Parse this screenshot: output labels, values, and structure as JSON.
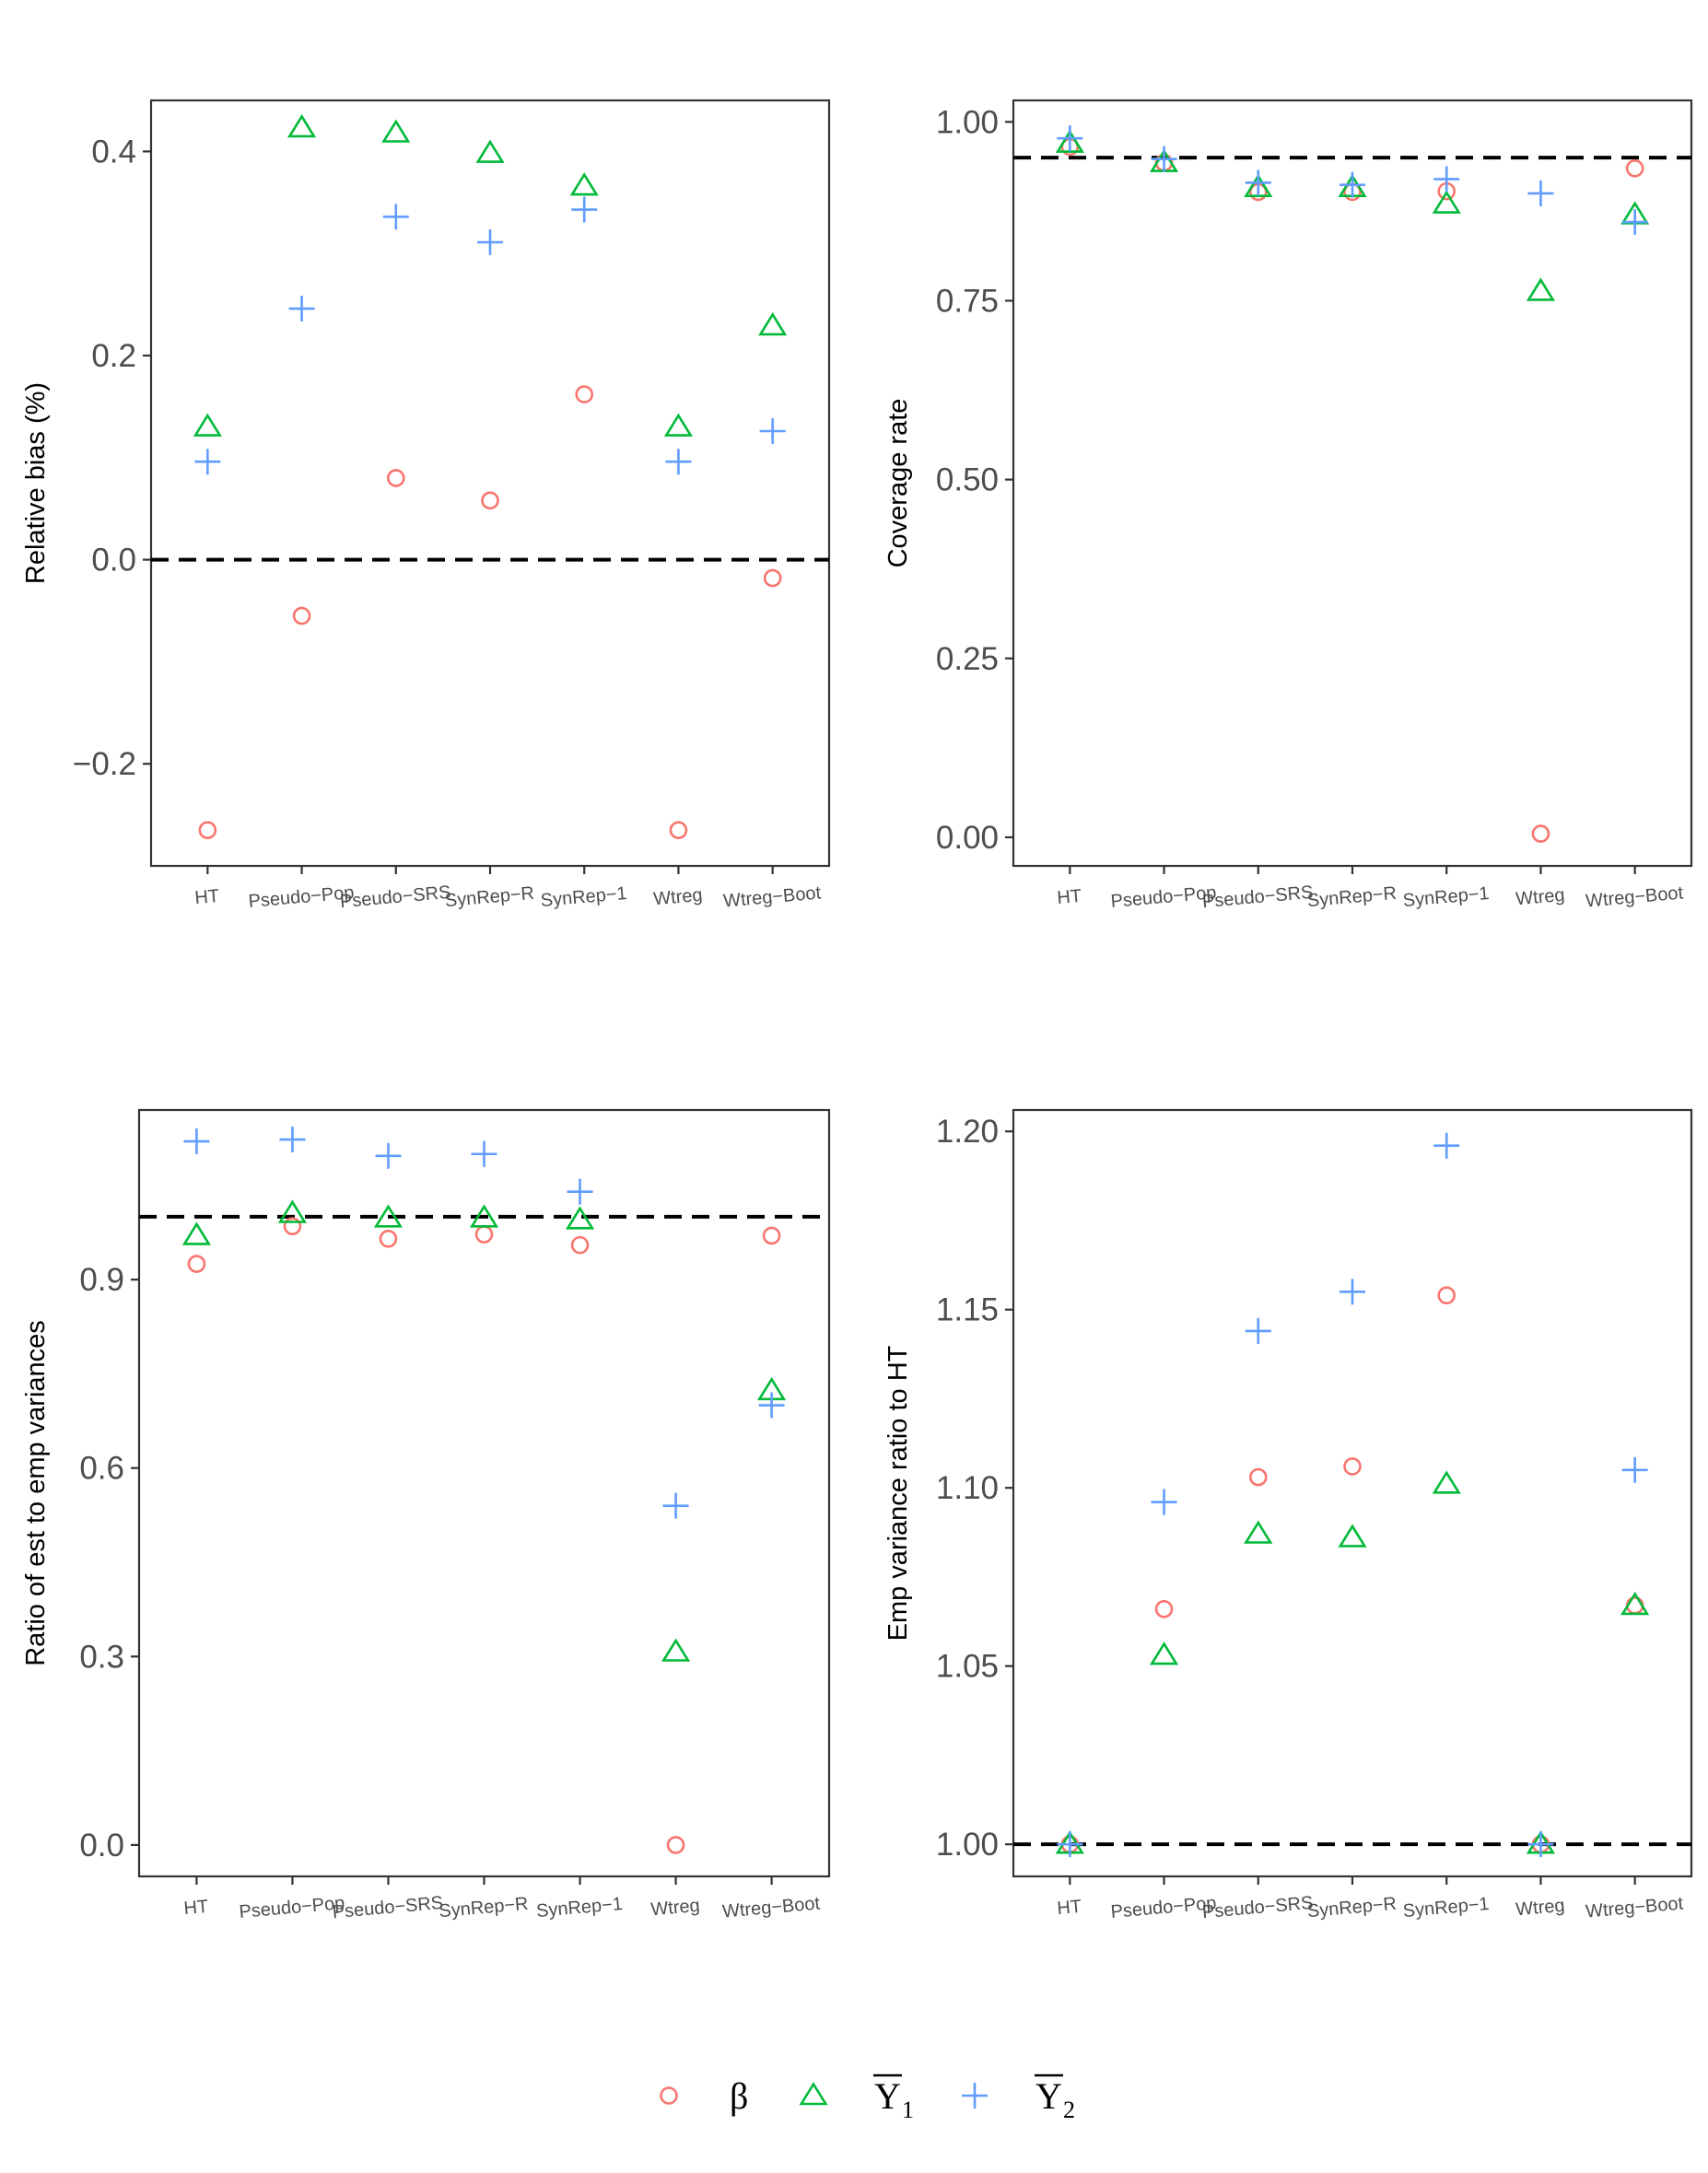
{
  "chart_data": [
    {
      "type": "scatter",
      "ylabel": "Relative bias (%)",
      "categories": [
        "HT",
        "Pseudo−Pop",
        "Pseudo−SRS",
        "SynRep−R",
        "SynRep−1",
        "Wtreg",
        "Wtreg−Boot"
      ],
      "ylim": [
        -0.3,
        0.45
      ],
      "yticks": [
        -0.2,
        0.0,
        0.2,
        0.4
      ],
      "ytick_labels": [
        "−0.2",
        "0.0",
        "0.2",
        "0.4"
      ],
      "reference_line": 0,
      "series": [
        {
          "key": "beta",
          "values": [
            -0.265,
            -0.055,
            0.08,
            0.058,
            0.162,
            -0.265,
            -0.018
          ]
        },
        {
          "key": "y1",
          "values": [
            0.13,
            0.423,
            0.418,
            0.398,
            0.366,
            0.13,
            0.229
          ]
        },
        {
          "key": "y2",
          "values": [
            0.096,
            0.246,
            0.336,
            0.311,
            0.343,
            0.096,
            0.126
          ]
        }
      ]
    },
    {
      "type": "scatter",
      "ylabel": "Coverage rate",
      "categories": [
        "HT",
        "Pseudo−Pop",
        "Pseudo−SRS",
        "SynRep−R",
        "SynRep−1",
        "Wtreg",
        "Wtreg−Boot"
      ],
      "ylim": [
        -0.04,
        1.03
      ],
      "yticks": [
        0.0,
        0.25,
        0.5,
        0.75,
        1.0
      ],
      "ytick_labels": [
        "0.00",
        "0.25",
        "0.50",
        "0.75",
        "1.00"
      ],
      "reference_line": 0.95,
      "series": [
        {
          "key": "beta",
          "values": [
            0.965,
            0.943,
            0.902,
            0.902,
            0.903,
            0.005,
            0.935
          ]
        },
        {
          "key": "y1",
          "values": [
            0.97,
            0.943,
            0.908,
            0.908,
            0.885,
            0.763,
            0.87
          ]
        },
        {
          "key": "y2",
          "values": [
            0.977,
            0.948,
            0.915,
            0.912,
            0.92,
            0.9,
            0.86
          ]
        }
      ]
    },
    {
      "type": "scatter",
      "ylabel": "Ratio of est to emp variances",
      "categories": [
        "HT",
        "Pseudo−Pop",
        "Pseudo−SRS",
        "SynRep−R",
        "SynRep−1",
        "Wtreg",
        "Wtreg−Boot"
      ],
      "ylim": [
        -0.05,
        1.17
      ],
      "yticks": [
        0.0,
        0.3,
        0.6,
        0.9
      ],
      "ytick_labels": [
        "0.0",
        "0.3",
        "0.6",
        "0.9"
      ],
      "reference_line": 1.0,
      "series": [
        {
          "key": "beta",
          "values": [
            0.925,
            0.985,
            0.965,
            0.972,
            0.955,
            0.0,
            0.97
          ]
        },
        {
          "key": "y1",
          "values": [
            0.97,
            1.005,
            0.998,
            0.998,
            0.995,
            0.307,
            0.723
          ]
        },
        {
          "key": "y2",
          "values": [
            1.12,
            1.123,
            1.097,
            1.1,
            1.04,
            0.54,
            0.7
          ]
        }
      ]
    },
    {
      "type": "scatter",
      "ylabel": "Emp variance ratio to HT",
      "categories": [
        "HT",
        "Pseudo−Pop",
        "Pseudo−SRS",
        "SynRep−R",
        "SynRep−1",
        "Wtreg",
        "Wtreg−Boot"
      ],
      "ylim": [
        0.991,
        1.206
      ],
      "yticks": [
        1.0,
        1.05,
        1.1,
        1.15,
        1.2
      ],
      "ytick_labels": [
        "1.00",
        "1.05",
        "1.10",
        "1.15",
        "1.20"
      ],
      "reference_line": 1.0,
      "series": [
        {
          "key": "beta",
          "values": [
            1.0,
            1.066,
            1.103,
            1.106,
            1.154,
            1.0,
            1.067
          ]
        },
        {
          "key": "y1",
          "values": [
            1.0,
            1.053,
            1.087,
            1.086,
            1.101,
            1.0,
            1.067
          ]
        },
        {
          "key": "y2",
          "values": [
            1.0,
            1.096,
            1.144,
            1.155,
            1.196,
            1.0,
            1.105
          ]
        }
      ]
    }
  ],
  "legend": {
    "placement": "bottom",
    "items": [
      {
        "key": "beta",
        "marker": "circle",
        "label": "β",
        "color": "#F8766D"
      },
      {
        "key": "y1",
        "marker": "triangle",
        "label": "Y",
        "subscript": "1",
        "overline": true,
        "color": "#00BA38"
      },
      {
        "key": "y2",
        "marker": "plus",
        "label": "Y",
        "subscript": "2",
        "overline": true,
        "color": "#619CFF"
      }
    ]
  }
}
